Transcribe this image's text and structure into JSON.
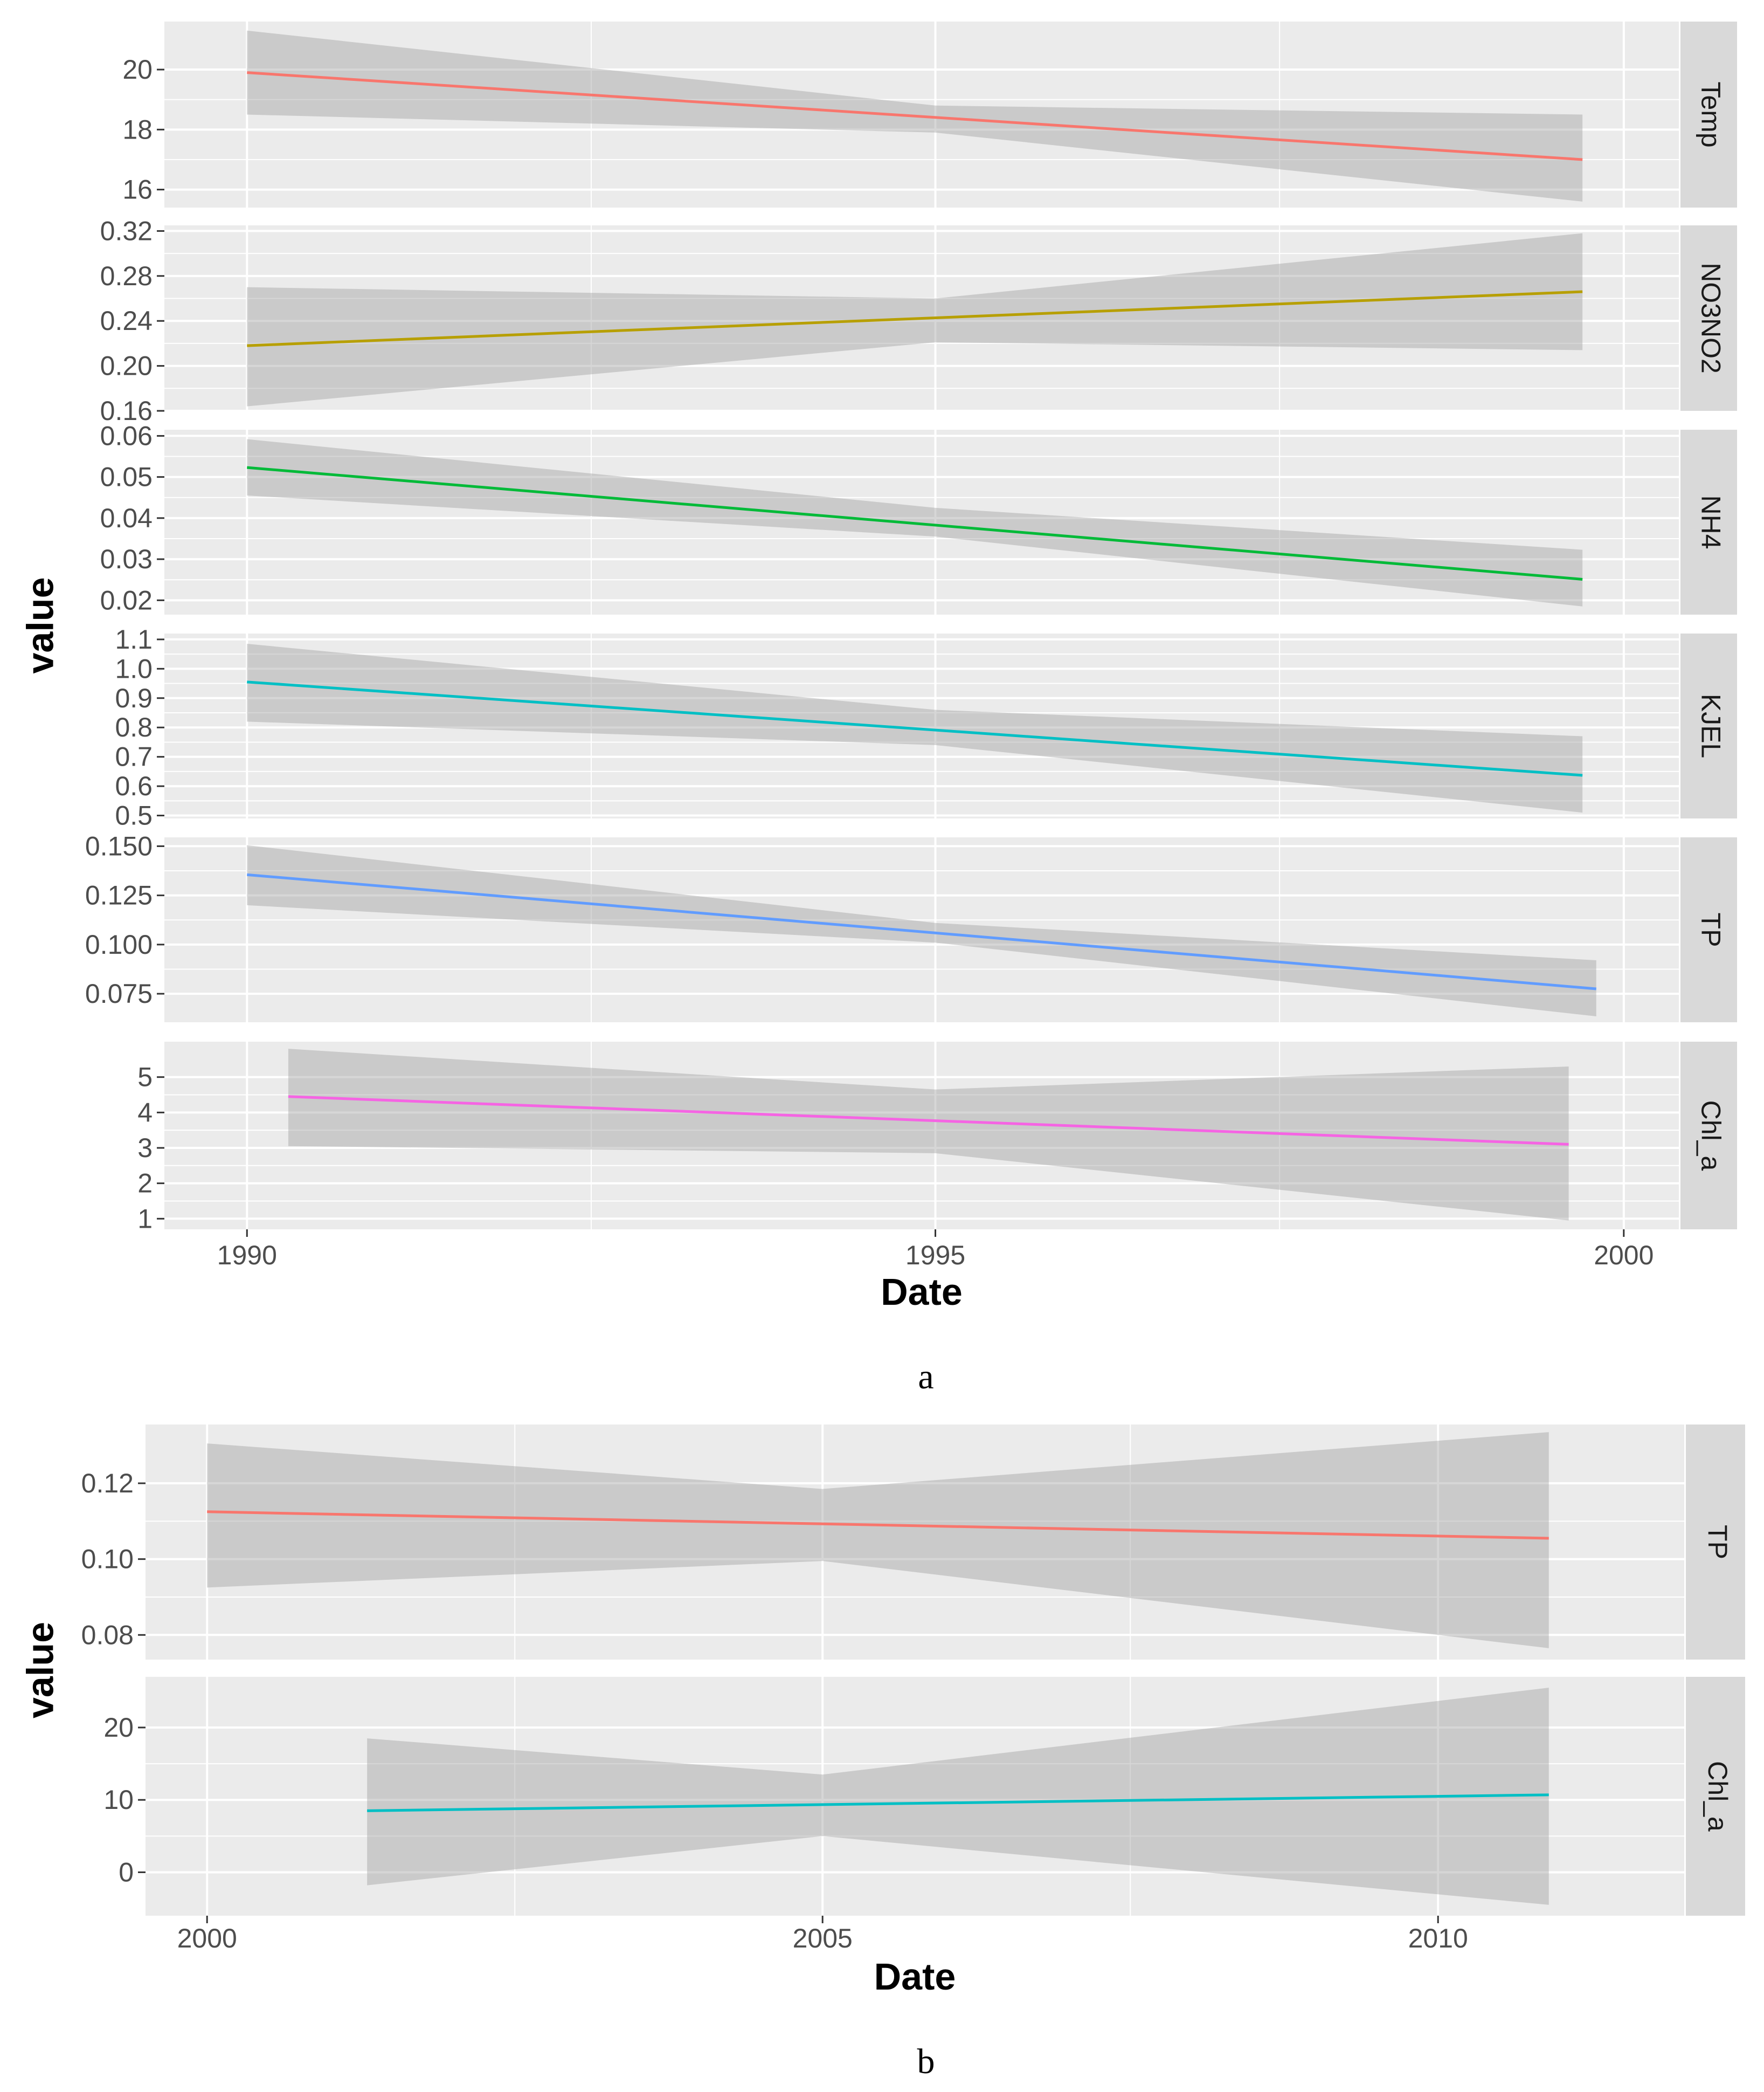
{
  "chart_data": [
    {
      "type": "line",
      "caption": "a",
      "xlabel": "Date",
      "ylabel": "value",
      "xlim": [
        1989.4,
        2000.4
      ],
      "x_ticks": [
        {
          "value": 1990,
          "label": "1990"
        },
        {
          "value": 1995,
          "label": "1995"
        },
        {
          "value": 2000,
          "label": "2000"
        }
      ],
      "panels": [
        {
          "name": "Temp",
          "color": "#F8766D",
          "x": [
            1990.0,
            1999.7
          ],
          "fit": [
            19.9,
            17.0
          ],
          "ci_x": [
            1990.0,
            1995.0,
            1999.7
          ],
          "ci_lower": [
            18.5,
            17.9,
            15.6
          ],
          "ci_upper": [
            21.3,
            18.8,
            18.5
          ],
          "ylim": [
            15.4,
            21.6
          ],
          "y_ticks": [
            {
              "value": 16,
              "label": "16"
            },
            {
              "value": 18,
              "label": "18"
            },
            {
              "value": 20,
              "label": "20"
            }
          ]
        },
        {
          "name": "NO3NO2",
          "color": "#B79F00",
          "x": [
            1990.0,
            1999.7
          ],
          "fit": [
            0.218,
            0.266
          ],
          "ci_x": [
            1990.0,
            1995.0,
            1999.7
          ],
          "ci_lower": [
            0.164,
            0.221,
            0.214
          ],
          "ci_upper": [
            0.27,
            0.26,
            0.318
          ],
          "ylim": [
            0.16,
            0.325
          ],
          "y_ticks": [
            {
              "value": 0.16,
              "label": "0.16"
            },
            {
              "value": 0.2,
              "label": "0.20"
            },
            {
              "value": 0.24,
              "label": "0.24"
            },
            {
              "value": 0.28,
              "label": "0.28"
            },
            {
              "value": 0.32,
              "label": "0.32"
            }
          ]
        },
        {
          "name": "NH4",
          "color": "#00BA38",
          "x": [
            1990.0,
            1999.7
          ],
          "fit": [
            0.0523,
            0.0251
          ],
          "ci_x": [
            1990.0,
            1995.0,
            1999.7
          ],
          "ci_lower": [
            0.0455,
            0.0355,
            0.0185
          ],
          "ci_upper": [
            0.0592,
            0.0425,
            0.0323
          ],
          "ylim": [
            0.0165,
            0.0615
          ],
          "y_ticks": [
            {
              "value": 0.02,
              "label": "0.02"
            },
            {
              "value": 0.03,
              "label": "0.03"
            },
            {
              "value": 0.04,
              "label": "0.04"
            },
            {
              "value": 0.05,
              "label": "0.05"
            },
            {
              "value": 0.06,
              "label": "0.06"
            }
          ]
        },
        {
          "name": "KJEL",
          "color": "#00BFC4",
          "x": [
            1990.0,
            1999.7
          ],
          "fit": [
            0.955,
            0.637
          ],
          "ci_x": [
            1990.0,
            1995.0,
            1999.7
          ],
          "ci_lower": [
            0.82,
            0.74,
            0.51
          ],
          "ci_upper": [
            1.085,
            0.86,
            0.77
          ],
          "ylim": [
            0.49,
            1.12
          ],
          "y_ticks": [
            {
              "value": 0.5,
              "label": "0.5"
            },
            {
              "value": 0.6,
              "label": "0.6"
            },
            {
              "value": 0.7,
              "label": "0.7"
            },
            {
              "value": 0.8,
              "label": "0.8"
            },
            {
              "value": 0.9,
              "label": "0.9"
            },
            {
              "value": 1.0,
              "label": "1.0"
            },
            {
              "value": 1.1,
              "label": "1.1"
            }
          ]
        },
        {
          "name": "TP",
          "color": "#619CFF",
          "x": [
            1990.0,
            1999.8
          ],
          "fit": [
            0.1355,
            0.0775
          ],
          "ci_x": [
            1990.0,
            1995.0,
            1999.8
          ],
          "ci_lower": [
            0.12,
            0.101,
            0.0635
          ],
          "ci_upper": [
            0.1505,
            0.111,
            0.092
          ],
          "ylim": [
            0.0605,
            0.1545
          ],
          "y_ticks": [
            {
              "value": 0.075,
              "label": "0.075"
            },
            {
              "value": 0.1,
              "label": "0.100"
            },
            {
              "value": 0.125,
              "label": "0.125"
            },
            {
              "value": 0.15,
              "label": "0.150"
            }
          ]
        },
        {
          "name": "Chl_a",
          "color": "#F564E3",
          "x": [
            1990.3,
            1999.6
          ],
          "fit": [
            4.45,
            3.1
          ],
          "ci_x": [
            1990.3,
            1995.0,
            1999.6
          ],
          "ci_lower": [
            3.05,
            2.85,
            0.95
          ],
          "ci_upper": [
            5.8,
            4.65,
            5.3
          ],
          "ylim": [
            0.7,
            6.0
          ],
          "y_ticks": [
            {
              "value": 1,
              "label": "1"
            },
            {
              "value": 2,
              "label": "2"
            },
            {
              "value": 3,
              "label": "3"
            },
            {
              "value": 4,
              "label": "4"
            },
            {
              "value": 5,
              "label": "5"
            }
          ]
        }
      ]
    },
    {
      "type": "line",
      "caption": "b",
      "xlabel": "Date",
      "ylabel": "value",
      "xlim": [
        1999.5,
        2012.0
      ],
      "x_ticks": [
        {
          "value": 2000,
          "label": "2000"
        },
        {
          "value": 2005,
          "label": "2005"
        },
        {
          "value": 2010,
          "label": "2010"
        }
      ],
      "panels": [
        {
          "name": "TP",
          "color": "#F8766D",
          "x": [
            2000.0,
            2010.9
          ],
          "fit": [
            0.1125,
            0.1055
          ],
          "ci_x": [
            2000.0,
            2005.0,
            2010.9
          ],
          "ci_lower": [
            0.0925,
            0.0995,
            0.0765
          ],
          "ci_upper": [
            0.1305,
            0.1185,
            0.1335
          ],
          "ylim": [
            0.0735,
            0.1355
          ],
          "y_ticks": [
            {
              "value": 0.08,
              "label": "0.08"
            },
            {
              "value": 0.1,
              "label": "0.10"
            },
            {
              "value": 0.12,
              "label": "0.12"
            }
          ]
        },
        {
          "name": "Chl_a",
          "color": "#00BFC4",
          "x": [
            2001.3,
            2010.9
          ],
          "fit": [
            8.5,
            10.7
          ],
          "ci_x": [
            2001.3,
            2005.0,
            2010.9
          ],
          "ci_lower": [
            -1.8,
            5.0,
            -4.5
          ],
          "ci_upper": [
            18.5,
            13.5,
            25.5
          ],
          "ylim": [
            -6.0,
            27.0
          ],
          "y_ticks": [
            {
              "value": 0,
              "label": "0"
            },
            {
              "value": 10,
              "label": "10"
            },
            {
              "value": 20,
              "label": "20"
            }
          ]
        }
      ]
    }
  ]
}
